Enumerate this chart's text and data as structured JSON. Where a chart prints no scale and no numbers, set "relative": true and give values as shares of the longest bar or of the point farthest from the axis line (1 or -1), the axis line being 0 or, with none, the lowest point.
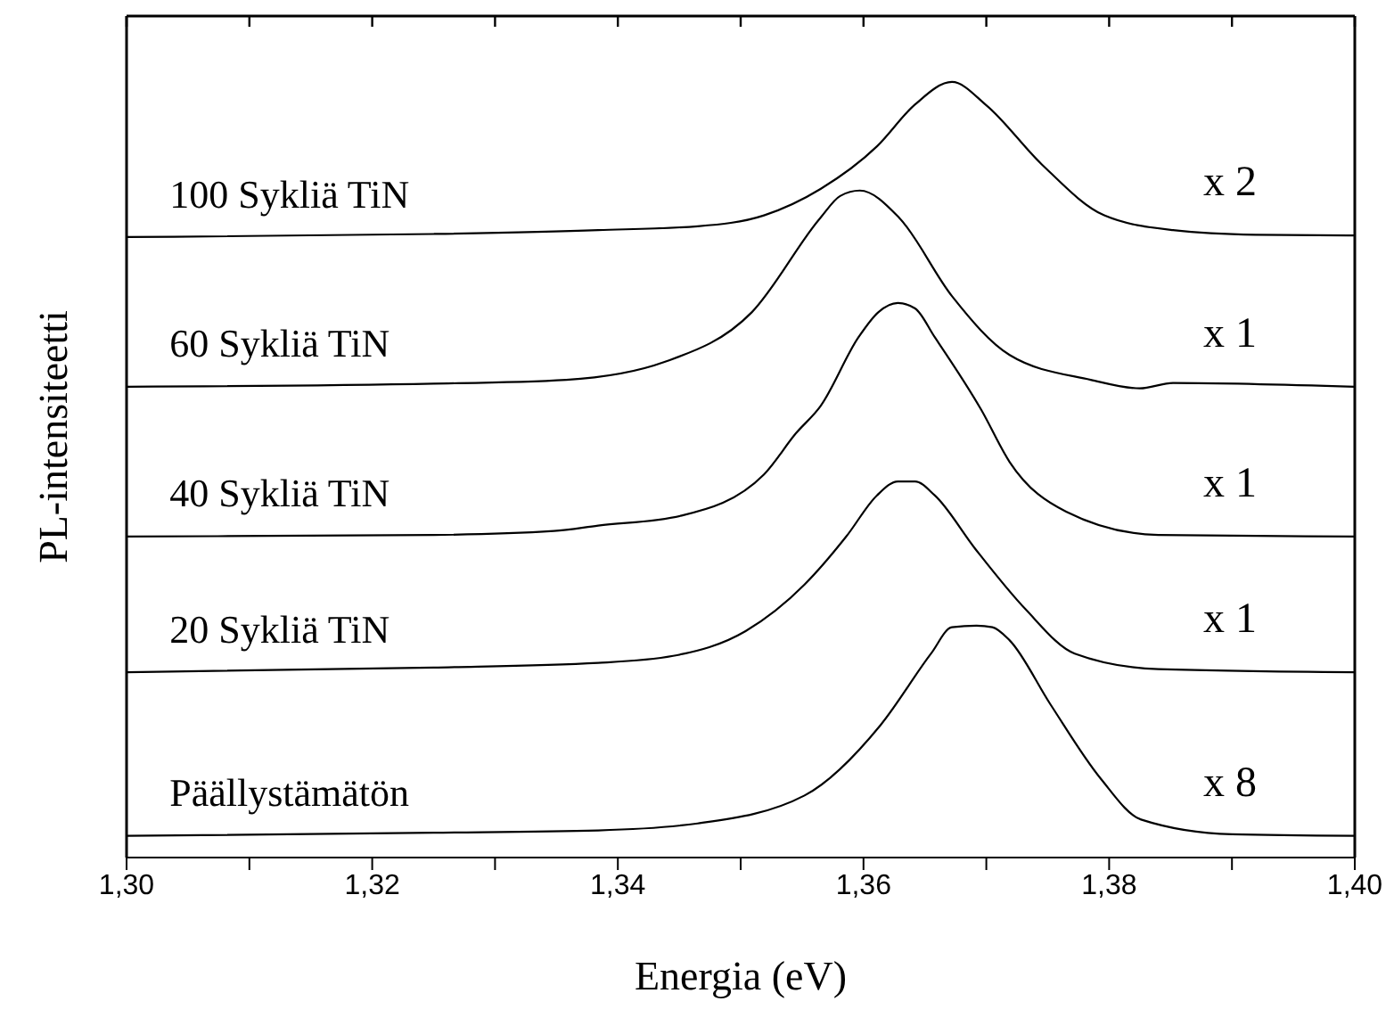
{
  "chart_data": {
    "type": "line",
    "relative": true,
    "xlabel": "Energia (eV)",
    "ylabel": "PL-intensiteetti",
    "tick_labels": "x",
    "marker": "none",
    "line_style": "solid",
    "xlim": [
      1.3,
      1.4
    ],
    "xticks": [
      {
        "value": 1.3,
        "label": "1,30"
      },
      {
        "value": 1.31,
        "label": null
      },
      {
        "value": 1.32,
        "label": "1,32"
      },
      {
        "value": 1.33,
        "label": null
      },
      {
        "value": 1.34,
        "label": "1,34"
      },
      {
        "value": 1.35,
        "label": null
      },
      {
        "value": 1.36,
        "label": "1,36"
      },
      {
        "value": 1.37,
        "label": null
      },
      {
        "value": 1.38,
        "label": "1,38"
      },
      {
        "value": 1.39,
        "label": null
      },
      {
        "value": 1.4,
        "label": "1,40"
      }
    ],
    "series": [
      {
        "name": "100 Sykliä TiN",
        "color": "#000000",
        "x": [
          1.3,
          1.325,
          1.3384,
          1.3465,
          1.3519,
          1.3565,
          1.3611,
          1.3642,
          1.3672,
          1.37,
          1.3745,
          1.3796,
          1.3852,
          1.3919,
          1.4
        ],
        "values": [
          0.8,
          0.804,
          0.809,
          0.814,
          0.828,
          0.862,
          0.917,
          0.971,
          1.0,
          0.97,
          0.894,
          0.828,
          0.809,
          0.803,
          0.802
        ]
      },
      {
        "name": "60 Sykliä TiN",
        "color": "#000000",
        "x": [
          1.3,
          1.325,
          1.3358,
          1.3438,
          1.3509,
          1.3565,
          1.3581,
          1.3597,
          1.3629,
          1.3672,
          1.3719,
          1.3785,
          1.3825,
          1.3852,
          1.4
        ],
        "values": [
          0.607,
          0.611,
          0.616,
          0.639,
          0.703,
          0.825,
          0.853,
          0.86,
          0.825,
          0.724,
          0.648,
          0.616,
          0.605,
          0.612,
          0.607
        ]
      },
      {
        "name": "40 Sykliä TiN",
        "color": "#000000",
        "x": [
          1.3,
          1.325,
          1.3348,
          1.3384,
          1.3452,
          1.3519,
          1.3545,
          1.3565,
          1.3596,
          1.3612,
          1.3628,
          1.3642,
          1.3658,
          1.3696,
          1.3719,
          1.3765,
          1.384,
          1.4
        ],
        "values": [
          0.414,
          0.416,
          0.421,
          0.428,
          0.441,
          0.494,
          0.547,
          0.582,
          0.671,
          0.703,
          0.715,
          0.708,
          0.671,
          0.577,
          0.51,
          0.446,
          0.416,
          0.414
        ]
      },
      {
        "name": "20 Sykliä TiN",
        "color": "#000000",
        "x": [
          1.3,
          1.325,
          1.3384,
          1.3445,
          1.3504,
          1.3552,
          1.3586,
          1.3611,
          1.3628,
          1.3642,
          1.3658,
          1.3691,
          1.3732,
          1.3772,
          1.384,
          1.4
        ],
        "values": [
          0.239,
          0.245,
          0.251,
          0.26,
          0.292,
          0.352,
          0.414,
          0.467,
          0.485,
          0.485,
          0.467,
          0.398,
          0.32,
          0.263,
          0.243,
          0.239
        ]
      },
      {
        "name": "Päällystämätön",
        "color": "#000000",
        "x": [
          1.3,
          1.325,
          1.3384,
          1.3465,
          1.3552,
          1.3614,
          1.3655,
          1.3672,
          1.3692,
          1.3705,
          1.3719,
          1.3752,
          1.3793,
          1.3826,
          1.39,
          1.4
        ],
        "values": [
          0.028,
          0.032,
          0.035,
          0.044,
          0.08,
          0.171,
          0.263,
          0.297,
          0.299,
          0.297,
          0.28,
          0.198,
          0.102,
          0.049,
          0.03,
          0.028
        ]
      }
    ],
    "annotations": [
      "x 2",
      "x 1",
      "x 1",
      "x 1",
      "x 8"
    ]
  }
}
